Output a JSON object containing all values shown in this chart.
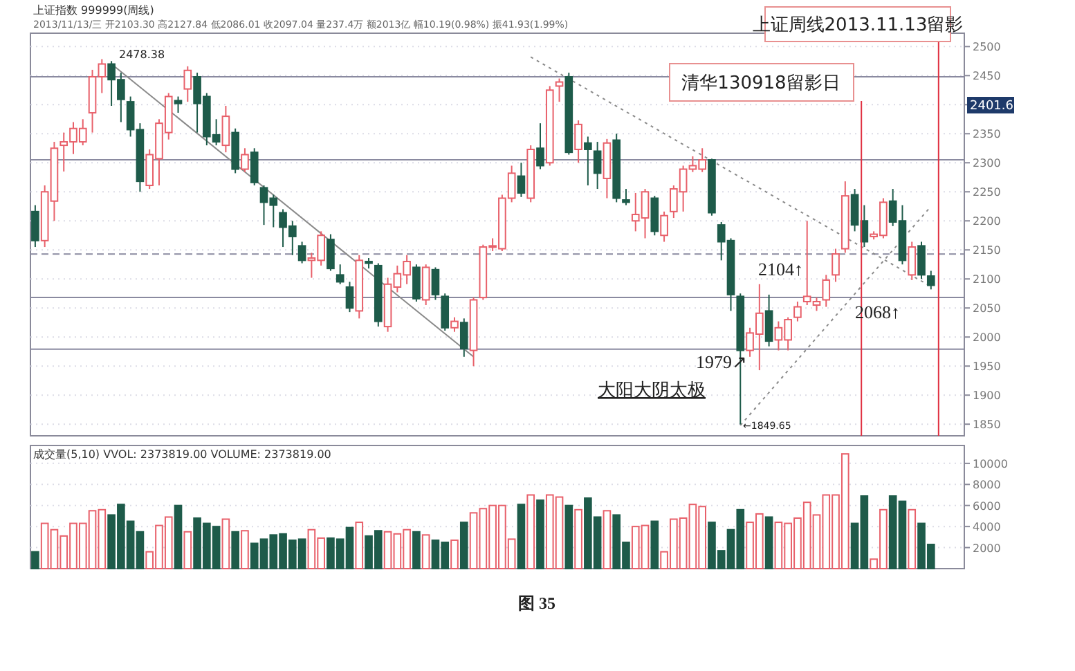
{
  "chart_data": [
    {
      "type": "candlestick",
      "title": "上证指数 999999(周线)",
      "subtitle": "2013/11/13/三 开2103.30 高2127.84 低2086.01 收2097.04 量237.4万 额2013亿 幅10.19(0.98%) 振41.93(1.99%)",
      "categories": [
        null,
        null,
        null,
        null,
        null,
        null,
        null,
        null,
        null,
        null,
        null,
        null,
        null,
        null,
        null,
        null,
        null,
        null,
        null,
        null,
        null,
        null,
        null,
        null,
        null,
        null,
        null,
        null,
        null,
        null,
        null,
        null,
        null,
        null,
        null,
        null,
        null,
        null,
        null,
        null,
        null,
        null,
        null,
        null,
        null,
        null,
        null,
        null,
        null,
        null,
        null,
        null,
        null,
        null,
        null,
        null,
        null,
        null,
        null,
        null,
        null,
        null,
        null,
        null,
        null,
        null,
        null,
        null,
        null,
        null,
        null,
        null,
        null,
        null,
        null,
        null,
        null,
        null,
        null,
        null,
        null,
        null,
        null,
        null,
        null,
        null,
        null,
        null,
        null,
        null,
        null,
        null,
        null,
        null,
        null
      ],
      "colors": [
        "#1e5b4a",
        "#e8606a",
        "#e8606a",
        "#e8606a",
        "#e8606a",
        "#e8606a",
        "#e8606a",
        "#e8606a",
        "#1e5b4a",
        "#1e5b4a",
        "#1e5b4a",
        "#1e5b4a",
        "#e8606a",
        "#e8606a",
        "#e8606a",
        "#1e5b4a",
        "#e8606a",
        "#1e5b4a",
        "#1e5b4a",
        "#1e5b4a",
        "#e8606a",
        "#1e5b4a",
        "#e8606a",
        "#1e5b4a",
        "#1e5b4a",
        "#1e5b4a",
        "#1e5b4a",
        "#1e5b4a",
        "#1e5b4a",
        "#e8606a",
        "#e8606a",
        "#1e5b4a",
        "#1e5b4a",
        "#1e5b4a",
        "#e8606a",
        "#1e5b4a",
        "#1e5b4a",
        "#e8606a",
        "#e8606a",
        "#e8606a",
        "#1e5b4a",
        "#e8606a",
        "#1e5b4a",
        "#1e5b4a",
        "#e8606a",
        "#1e5b4a",
        "#e8606a",
        "#e8606a",
        "#e8606a",
        "#e8606a",
        "#e8606a",
        "#1e5b4a",
        "#e8606a",
        "#1e5b4a",
        "#e8606a",
        "#e8606a",
        "#1e5b4a",
        "#e8606a",
        "#1e5b4a",
        "#1e5b4a",
        "#e8606a",
        "#1e5b4a",
        "#1e5b4a",
        "#e8606a",
        "#e8606a",
        "#1e5b4a",
        "#e8606a",
        "#e8606a",
        "#e8606a",
        "#e8606a",
        "#e8606a",
        "#1e5b4a",
        "#1e5b4a",
        "#1e5b4a",
        "#1e5b4a",
        "#e8606a",
        "#e8606a",
        "#1e5b4a",
        "#e8606a",
        "#e8606a",
        "#e8606a",
        "#e8606a",
        "#e8606a",
        "#e8606a",
        "#e8606a",
        "#e8606a",
        "#1e5b4a",
        "#1e5b4a",
        "#e8606a",
        "#e8606a",
        "#1e5b4a",
        "#1e5b4a",
        "#e8606a",
        "#1e5b4a",
        "#1e5b4a"
      ],
      "ohlc": [
        [
          2216,
          2227,
          2155,
          2166
        ],
        [
          2166,
          2261,
          2155,
          2250
        ],
        [
          2234,
          2336,
          2200,
          2325
        ],
        [
          2330,
          2352,
          2285,
          2336
        ],
        [
          2336,
          2370,
          2315,
          2359
        ],
        [
          2336,
          2375,
          2330,
          2359
        ],
        [
          2386,
          2460,
          2352,
          2448
        ],
        [
          2448,
          2478.38,
          2420,
          2470
        ],
        [
          2470,
          2475,
          2398,
          2443
        ],
        [
          2443,
          2455,
          2370,
          2409
        ],
        [
          2405,
          2414,
          2345,
          2357
        ],
        [
          2357,
          2368,
          2250,
          2268
        ],
        [
          2261,
          2323,
          2255,
          2314
        ],
        [
          2307,
          2375,
          2261,
          2368
        ],
        [
          2352,
          2420,
          2340,
          2414
        ],
        [
          2407,
          2414,
          2386,
          2402
        ],
        [
          2427,
          2466,
          2405,
          2459
        ],
        [
          2448,
          2455,
          2352,
          2402
        ],
        [
          2414,
          2420,
          2330,
          2345
        ],
        [
          2348,
          2375,
          2330,
          2336
        ],
        [
          2330,
          2398,
          2318,
          2380
        ],
        [
          2352,
          2359,
          2282,
          2289
        ],
        [
          2289,
          2325,
          2284,
          2314
        ],
        [
          2318,
          2325,
          2261,
          2266
        ],
        [
          2257,
          2261,
          2193,
          2232
        ],
        [
          2239,
          2245,
          2189,
          2227
        ],
        [
          2214,
          2220,
          2155,
          2189
        ],
        [
          2191,
          2200,
          2141,
          2173
        ],
        [
          2157,
          2164,
          2127,
          2132
        ],
        [
          2132,
          2145,
          2102,
          2136
        ],
        [
          2132,
          2182,
          2123,
          2175
        ],
        [
          2168,
          2177,
          2114,
          2118
        ],
        [
          2107,
          2125,
          2091,
          2095
        ],
        [
          2086,
          2095,
          2043,
          2050
        ],
        [
          2045,
          2141,
          2032,
          2132
        ],
        [
          2130,
          2136,
          2118,
          2127
        ],
        [
          2123,
          2127,
          2018,
          2027
        ],
        [
          2018,
          2102,
          2009,
          2091
        ],
        [
          2086,
          2123,
          2077,
          2109
        ],
        [
          2107,
          2141,
          2091,
          2130
        ],
        [
          2120,
          2125,
          2061,
          2066
        ],
        [
          2064,
          2125,
          2055,
          2120
        ],
        [
          2116,
          2120,
          2064,
          2073
        ],
        [
          2070,
          2075,
          2011,
          2016
        ],
        [
          2016,
          2034,
          2009,
          2027
        ],
        [
          2025,
          2032,
          1966,
          1980
        ],
        [
          1977,
          2068,
          1950,
          2064
        ],
        [
          2068,
          2159,
          2064,
          2155
        ],
        [
          2155,
          2170,
          2148,
          2157
        ],
        [
          2152,
          2245,
          2148,
          2239
        ],
        [
          2239,
          2295,
          2232,
          2282
        ],
        [
          2277,
          2300,
          2241,
          2248
        ],
        [
          2239,
          2330,
          2232,
          2323
        ],
        [
          2325,
          2368,
          2289,
          2295
        ],
        [
          2300,
          2432,
          2295,
          2425
        ],
        [
          2432,
          2445,
          2405,
          2439
        ],
        [
          2448,
          2455,
          2314,
          2318
        ],
        [
          2323,
          2373,
          2300,
          2366
        ],
        [
          2334,
          2345,
          2261,
          2323
        ],
        [
          2320,
          2336,
          2255,
          2282
        ],
        [
          2273,
          2341,
          2239,
          2334
        ],
        [
          2339,
          2350,
          2232,
          2239
        ],
        [
          2236,
          2255,
          2227,
          2232
        ],
        [
          2200,
          2248,
          2182,
          2211
        ],
        [
          2205,
          2255,
          2170,
          2250
        ],
        [
          2239,
          2243,
          2175,
          2182
        ],
        [
          2175,
          2216,
          2164,
          2209
        ],
        [
          2216,
          2261,
          2205,
          2255
        ],
        [
          2250,
          2295,
          2216,
          2289
        ],
        [
          2289,
          2311,
          2284,
          2295
        ],
        [
          2289,
          2325,
          2284,
          2305
        ],
        [
          2305,
          2307,
          2209,
          2214
        ],
        [
          2193,
          2198,
          2132,
          2164
        ],
        [
          2166,
          2170,
          2045,
          2073
        ],
        [
          2070,
          2075,
          1849.65,
          1977
        ],
        [
          1977,
          2016,
          1966,
          2007
        ],
        [
          2005,
          2091,
          1943,
          2041
        ],
        [
          2045,
          2073,
          1984,
          1993
        ],
        [
          1995,
          2027,
          1977,
          2016
        ],
        [
          1995,
          2034,
          1977,
          2030
        ],
        [
          2034,
          2061,
          2027,
          2052
        ],
        [
          2061,
          2200,
          2055,
          2070
        ],
        [
          2055,
          2068,
          2045,
          2061
        ],
        [
          2064,
          2107,
          2052,
          2098
        ],
        [
          2107,
          2152,
          2095,
          2143
        ],
        [
          2152,
          2268,
          2145,
          2243
        ],
        [
          2245,
          2255,
          2182,
          2193
        ],
        [
          2200,
          2227,
          2155,
          2164
        ],
        [
          2173,
          2182,
          2168,
          2177
        ],
        [
          2175,
          2239,
          2170,
          2232
        ],
        [
          2234,
          2255,
          2191,
          2198
        ],
        [
          2200,
          2227,
          2125,
          2132
        ],
        [
          2107,
          2164,
          2098,
          2155
        ],
        [
          2157,
          2164,
          2100,
          2107
        ],
        [
          2105,
          2114,
          2082,
          2089
        ]
      ],
      "series": [
        {
          "type": "line",
          "values": [
            null,
            null,
            null,
            null,
            null,
            null,
            null,
            null,
            2470,
            null,
            null,
            null,
            null,
            null,
            null,
            null,
            null,
            null,
            null,
            null,
            null,
            null,
            null,
            null,
            null,
            null,
            null,
            null,
            null,
            null,
            null,
            null,
            null,
            null,
            null,
            null,
            null,
            null,
            null,
            null,
            null,
            null,
            null,
            null,
            null,
            null,
            1966,
            null,
            null,
            null,
            null,
            null,
            null,
            null,
            null,
            null,
            null,
            null,
            null,
            null,
            null,
            null,
            null,
            null,
            null,
            null,
            null,
            null,
            null,
            null,
            null,
            null,
            null,
            null,
            null,
            null,
            null,
            null,
            null,
            null,
            null,
            null,
            null,
            null,
            null,
            null,
            null,
            null,
            null,
            null,
            null,
            null,
            null,
            null,
            null
          ],
          "color": "#8a8a8a",
          "line_style": "solid"
        },
        {
          "type": "line",
          "values": [
            null,
            null,
            null,
            null,
            null,
            null,
            null,
            null,
            null,
            null,
            null,
            null,
            null,
            null,
            null,
            null,
            null,
            null,
            null,
            null,
            null,
            null,
            null,
            null,
            null,
            null,
            null,
            null,
            null,
            null,
            null,
            null,
            null,
            null,
            null,
            null,
            null,
            null,
            null,
            null,
            null,
            null,
            null,
            null,
            null,
            null,
            null,
            null,
            null,
            null,
            null,
            null,
            2482,
            null,
            null,
            null,
            null,
            null,
            null,
            null,
            null,
            null,
            null,
            null,
            null,
            null,
            null,
            null,
            null,
            null,
            null,
            null,
            null,
            null,
            null,
            null,
            null,
            null,
            null,
            null,
            null,
            null,
            null,
            null,
            null,
            null,
            null,
            null,
            null,
            null,
            null,
            null,
            null,
            null,
            2087
          ],
          "color": "#8a8a8a",
          "line_style": "dotted"
        },
        {
          "type": "line",
          "values": [
            null,
            null,
            null,
            null,
            null,
            null,
            null,
            null,
            null,
            null,
            null,
            null,
            null,
            null,
            null,
            null,
            null,
            null,
            null,
            null,
            null,
            null,
            null,
            null,
            null,
            null,
            null,
            null,
            null,
            null,
            null,
            null,
            null,
            null,
            null,
            null,
            null,
            null,
            null,
            null,
            null,
            null,
            null,
            null,
            null,
            null,
            null,
            null,
            null,
            null,
            null,
            null,
            null,
            null,
            null,
            null,
            null,
            null,
            null,
            null,
            null,
            null,
            null,
            null,
            null,
            null,
            null,
            null,
            null,
            null,
            null,
            null,
            null,
            null,
            1848,
            null,
            null,
            null,
            null,
            null,
            null,
            null,
            null,
            null,
            null,
            null,
            null,
            null,
            null,
            null,
            null,
            null,
            null,
            null,
            2225
          ],
          "color": "#8a8a8a",
          "line_style": "dotted"
        }
      ],
      "ref_lines": [
        {
          "axis": "y",
          "value": 2448,
          "color": "#8a8aa0",
          "line_style": "solid"
        },
        {
          "axis": "y",
          "value": 2305,
          "color": "#8a8aa0",
          "line_style": "solid"
        },
        {
          "axis": "y",
          "value": 2143,
          "color": "#8a8aa0",
          "line_style": "dashed"
        },
        {
          "axis": "y",
          "value": 2068,
          "color": "#8a8aa0",
          "line_style": "solid"
        },
        {
          "axis": "y",
          "value": 1979,
          "color": "#8a8aa0",
          "line_style": "solid"
        }
      ],
      "annotations": [
        "2478.38",
        "上证周线2013.11.13留影",
        "清华130918留影日",
        "2104↑",
        "2068↑",
        "1979↗",
        "大阳大阴太极",
        "←1849.65",
        "2401.6"
      ],
      "ylim": [
        1830,
        2523
      ],
      "yticks": [
        1850,
        1900,
        1950,
        2000,
        2050,
        2100,
        2150,
        2200,
        2250,
        2300,
        2350,
        {
          "value": 2400,
          "label": null
        },
        2450,
        2500
      ],
      "grid": "y"
    },
    {
      "type": "bar",
      "title": "成交量(5,10) VVOL: 2373819.00 VOLUME: 2373819.00",
      "categories": [
        null,
        null,
        null,
        null,
        null,
        null,
        null,
        null,
        null,
        null,
        null,
        null,
        null,
        null,
        null,
        null,
        null,
        null,
        null,
        null,
        null,
        null,
        null,
        null,
        null,
        null,
        null,
        null,
        null,
        null,
        null,
        null,
        null,
        null,
        null,
        null,
        null,
        null,
        null,
        null,
        null,
        null,
        null,
        null,
        null,
        null,
        null,
        null,
        null,
        null,
        null,
        null,
        null,
        null,
        null,
        null,
        null,
        null,
        null,
        null,
        null,
        null,
        null,
        null,
        null,
        null,
        null,
        null,
        null,
        null,
        null,
        null,
        null,
        null,
        null,
        null,
        null,
        null,
        null,
        null,
        null,
        null,
        null,
        null,
        null,
        null,
        null,
        null,
        null,
        null,
        null,
        null,
        null,
        null,
        null
      ],
      "values": [
        1600,
        4300,
        3700,
        3100,
        4300,
        4300,
        5500,
        5600,
        5100,
        6100,
        4500,
        3500,
        1600,
        4100,
        4900,
        6000,
        3500,
        4800,
        4300,
        4000,
        4700,
        3500,
        3600,
        2400,
        2800,
        3200,
        3300,
        2700,
        2800,
        3700,
        2900,
        2900,
        2800,
        3900,
        4400,
        3100,
        3600,
        3500,
        3300,
        3700,
        3500,
        3200,
        2700,
        2500,
        2700,
        4400,
        5300,
        5700,
        6000,
        6000,
        2800,
        6100,
        7000,
        6500,
        7000,
        6800,
        6000,
        5600,
        6700,
        4900,
        5500,
        5100,
        2500,
        4000,
        4100,
        4500,
        1600,
        4700,
        4800,
        6100,
        5900,
        4400,
        1700,
        3700,
        5600,
        4400,
        5200,
        4900,
        4400,
        4300,
        4800,
        6300,
        5100,
        7000,
        7000,
        10900,
        4300,
        6900,
        900,
        5600,
        6900,
        6400,
        5600,
        4300,
        2300
      ],
      "colors": [
        "#1e5b4a",
        "#e8606a",
        "#e8606a",
        "#e8606a",
        "#e8606a",
        "#e8606a",
        "#e8606a",
        "#e8606a",
        "#1e5b4a",
        "#1e5b4a",
        "#1e5b4a",
        "#1e5b4a",
        "#e8606a",
        "#e8606a",
        "#e8606a",
        "#1e5b4a",
        "#e8606a",
        "#1e5b4a",
        "#1e5b4a",
        "#1e5b4a",
        "#e8606a",
        "#1e5b4a",
        "#e8606a",
        "#1e5b4a",
        "#1e5b4a",
        "#1e5b4a",
        "#1e5b4a",
        "#1e5b4a",
        "#1e5b4a",
        "#e8606a",
        "#e8606a",
        "#1e5b4a",
        "#1e5b4a",
        "#1e5b4a",
        "#e8606a",
        "#1e5b4a",
        "#1e5b4a",
        "#e8606a",
        "#e8606a",
        "#e8606a",
        "#1e5b4a",
        "#e8606a",
        "#1e5b4a",
        "#1e5b4a",
        "#e8606a",
        "#1e5b4a",
        "#e8606a",
        "#e8606a",
        "#e8606a",
        "#e8606a",
        "#e8606a",
        "#1e5b4a",
        "#e8606a",
        "#1e5b4a",
        "#e8606a",
        "#e8606a",
        "#1e5b4a",
        "#e8606a",
        "#1e5b4a",
        "#1e5b4a",
        "#e8606a",
        "#1e5b4a",
        "#1e5b4a",
        "#e8606a",
        "#e8606a",
        "#1e5b4a",
        "#e8606a",
        "#e8606a",
        "#e8606a",
        "#e8606a",
        "#e8606a",
        "#1e5b4a",
        "#1e5b4a",
        "#1e5b4a",
        "#1e5b4a",
        "#e8606a",
        "#e8606a",
        "#1e5b4a",
        "#e8606a",
        "#e8606a",
        "#e8606a",
        "#e8606a",
        "#e8606a",
        "#e8606a",
        "#e8606a",
        "#e8606a",
        "#1e5b4a",
        "#1e5b4a",
        "#e8606a",
        "#e8606a",
        "#1e5b4a",
        "#1e5b4a",
        "#e8606a",
        "#1e5b4a",
        "#1e5b4a"
      ],
      "annotations": [
        "图 35"
      ],
      "ylim": [
        0,
        11700
      ],
      "yticks": [
        2000,
        4000,
        6000,
        8000,
        10000
      ],
      "grid": "y"
    }
  ]
}
